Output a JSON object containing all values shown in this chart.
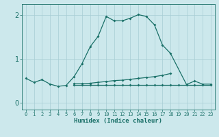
{
  "xlabel": "Humidex (Indice chaleur)",
  "bg_color": "#cce8ec",
  "grid_color": "#a8cdd4",
  "line_color": "#1a7068",
  "x_ticks": [
    0,
    1,
    2,
    3,
    4,
    5,
    6,
    7,
    8,
    9,
    10,
    11,
    12,
    13,
    14,
    15,
    16,
    17,
    18,
    19,
    20,
    21,
    22,
    23
  ],
  "y_ticks": [
    0,
    1,
    2
  ],
  "ylim": [
    -0.15,
    2.25
  ],
  "xlim": [
    -0.5,
    23.5
  ],
  "series1_x": [
    0,
    1,
    2,
    3,
    4,
    5,
    6,
    7,
    8,
    9,
    10,
    11,
    12,
    13,
    14,
    15,
    16,
    17,
    18,
    20,
    21,
    22,
    23
  ],
  "series1_y": [
    0.56,
    0.47,
    0.53,
    0.43,
    0.38,
    0.4,
    0.6,
    0.9,
    1.28,
    1.52,
    1.97,
    1.87,
    1.87,
    1.93,
    2.01,
    1.97,
    1.78,
    1.32,
    1.13,
    0.42,
    0.5,
    0.43,
    0.43
  ],
  "series2_x": [
    6,
    7,
    8,
    9,
    10,
    11,
    12,
    13,
    14,
    15,
    16,
    17,
    18
  ],
  "series2_y": [
    0.44,
    0.44,
    0.45,
    0.47,
    0.49,
    0.51,
    0.52,
    0.54,
    0.56,
    0.58,
    0.6,
    0.63,
    0.67
  ],
  "series3_x": [
    6,
    7,
    8,
    9,
    10,
    11,
    12,
    13,
    14,
    15,
    16,
    17,
    18,
    19,
    20,
    21,
    22,
    23
  ],
  "series3_y": [
    0.41,
    0.41,
    0.41,
    0.41,
    0.41,
    0.41,
    0.41,
    0.41,
    0.41,
    0.41,
    0.41,
    0.41,
    0.41,
    0.41,
    0.41,
    0.41,
    0.41,
    0.41
  ]
}
